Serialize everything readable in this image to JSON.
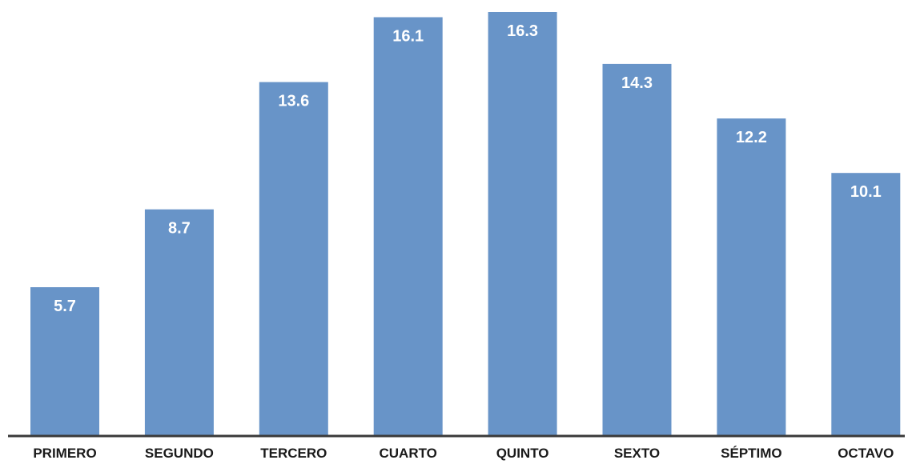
{
  "chart_data": {
    "type": "bar",
    "categories": [
      "PRIMERO",
      "SEGUNDO",
      "TERCERO",
      "CUARTO",
      "QUINTO",
      "SEXTO",
      "SÉPTIMO",
      "OCTAVO"
    ],
    "values": [
      5.7,
      8.7,
      13.6,
      16.1,
      16.3,
      14.3,
      12.2,
      10.1
    ],
    "value_labels": [
      "5.7",
      "8.7",
      "13.6",
      "16.1",
      "16.3",
      "14.3",
      "12.2",
      "10.1"
    ],
    "title": "",
    "xlabel": "",
    "ylabel": "",
    "ylim": [
      0,
      16.3
    ],
    "grid": false,
    "legend": "none",
    "bar_color": "#6894C8",
    "axis_color": "#3a3a3a"
  }
}
